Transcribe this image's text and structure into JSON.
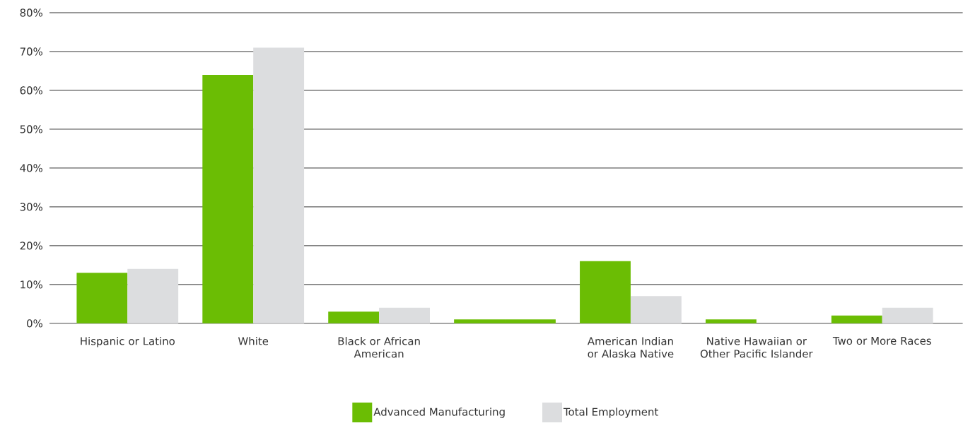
{
  "chart_data": {
    "type": "bar",
    "categories": [
      "Hispanic or Latino",
      "White",
      "Black or African American",
      null,
      "American Indian or Alaska Native",
      "Native Hawaiian or Other Pacific Islander",
      "Two or More Races"
    ],
    "series": [
      {
        "name": "Advanced Manufacturing",
        "color": "#6bbd04",
        "values": [
          13,
          64,
          3,
          1,
          16,
          1,
          2
        ]
      },
      {
        "name": "Total Employment",
        "color": "#dcdddf",
        "colors": [
          "#dcdddf",
          "#dcdddf",
          "#dcdddf",
          "#6bbd04",
          "#dcdddf",
          "#dcdddf",
          "#dcdddf"
        ],
        "values": [
          14,
          71,
          4,
          1,
          7,
          0,
          4
        ]
      }
    ],
    "ylim": [
      0,
      80
    ],
    "yticks": [
      {
        "value": 0,
        "label": "0%"
      },
      {
        "value": 10,
        "label": "10%"
      },
      {
        "value": 20,
        "label": "20%"
      },
      {
        "value": 30,
        "label": "30%"
      },
      {
        "value": 40,
        "label": "40%"
      },
      {
        "value": 50,
        "label": "50%"
      },
      {
        "value": 60,
        "label": "60%"
      },
      {
        "value": 70,
        "label": "70%"
      },
      {
        "value": 80,
        "label": "80%"
      }
    ],
    "grid": "y",
    "legend": "bottom"
  }
}
